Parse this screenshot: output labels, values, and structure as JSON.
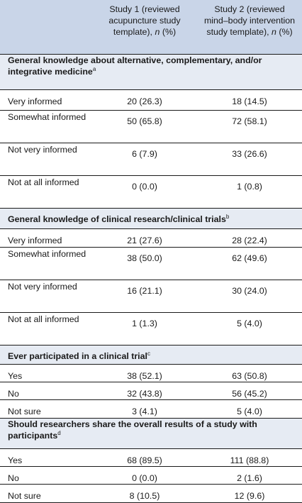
{
  "header": {
    "col1": "",
    "col2": "Study 1 (reviewed acupuncture study template),",
    "col3": "Study 2 (reviewed mind–body intervention study template),",
    "n_symbol": "n",
    "pct": "(%)"
  },
  "rows": [
    {
      "type": "section",
      "label": "General knowledge about alternative, complementary, and/or integrative medicine",
      "sup": "a"
    },
    {
      "label": "Very informed",
      "s1": "20 (26.3)",
      "s2": "18 (14.5)"
    },
    {
      "label": "Somewhat informed",
      "s1": "50 (65.8)",
      "s2": "72 (58.1)"
    },
    {
      "label": "Not very informed",
      "s1": "6 (7.9)",
      "s2": "33 (26.6)"
    },
    {
      "label": "Not at all informed",
      "s1": "0 (0.0)",
      "s2": "1 (0.8)"
    },
    {
      "type": "section",
      "label": "General knowledge of clinical research/clinical trials",
      "sup": "b"
    },
    {
      "label": "Very informed",
      "s1": "21 (27.6)",
      "s2": "28 (22.4)"
    },
    {
      "label": "Somewhat informed",
      "s1": "38 (50.0)",
      "s2": "62 (49.6)"
    },
    {
      "label": "Not very informed",
      "s1": "16 (21.1)",
      "s2": "30 (24.0)"
    },
    {
      "label": "Not at all informed",
      "s1": "1 (1.3)",
      "s2": "5 (4.0)"
    },
    {
      "type": "section",
      "label": "Ever participated in a clinical trial",
      "sup": "c"
    },
    {
      "label": "Yes",
      "s1": "38 (52.1)",
      "s2": "63 (50.8)"
    },
    {
      "label": "No",
      "s1": "32 (43.8)",
      "s2": "56 (45.2)"
    },
    {
      "label": "Not sure",
      "s1": "3 (4.1)",
      "s2": "5 (4.0)"
    },
    {
      "type": "section",
      "label": "Should researchers share the overall results of a study with participants",
      "sup": "d"
    },
    {
      "label": "Yes",
      "s1": "68 (89.5)",
      "s2": "111 (88.8)"
    },
    {
      "label": "No",
      "s1": "0 (0.0)",
      "s2": "2 (1.6)"
    },
    {
      "label": "Not sure",
      "s1": "8 (10.5)",
      "s2": "12 (9.6)"
    }
  ]
}
